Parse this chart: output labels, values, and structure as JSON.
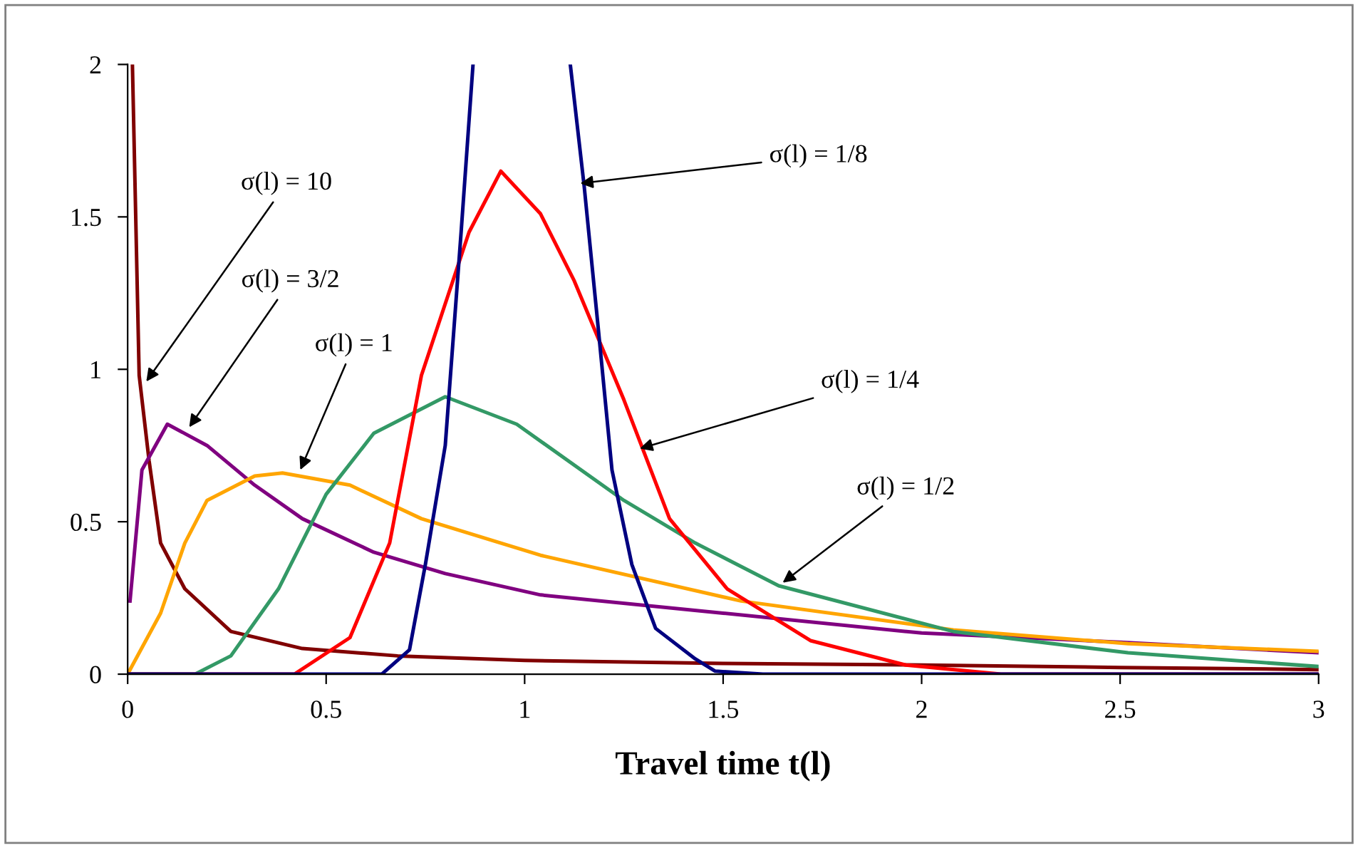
{
  "chart_data": {
    "type": "line",
    "xlabel": "Travel time t(l)",
    "xlim": [
      0,
      3
    ],
    "xticks": [
      0,
      0.5,
      1,
      1.5,
      2,
      2.5,
      3
    ],
    "ylim": [
      0,
      2
    ],
    "yticks": [
      0,
      0.5,
      1,
      1.5,
      2
    ],
    "grid": false,
    "marker": "none",
    "line_style": "solid",
    "series": [
      {
        "color": "#800000",
        "x": [
          0.012,
          0.029,
          0.054,
          0.083,
          0.144,
          0.26,
          0.44,
          0.68,
          1,
          1.5,
          2,
          2.5,
          3
        ],
        "values": [
          2.0,
          0.98,
          0.7,
          0.43,
          0.28,
          0.14,
          0.084,
          0.06,
          0.045,
          0.035,
          0.03,
          0.022,
          0.015
        ]
      },
      {
        "color": "#800080",
        "x": [
          0.006,
          0.036,
          0.1,
          0.2,
          0.32,
          0.44,
          0.62,
          0.8,
          1.04,
          1.5,
          2,
          2.5,
          3
        ],
        "values": [
          0.24,
          0.67,
          0.82,
          0.75,
          0.62,
          0.51,
          0.4,
          0.33,
          0.26,
          0.2,
          0.135,
          0.105,
          0.07
        ]
      },
      {
        "color": "#ffa500",
        "x": [
          0,
          0.083,
          0.144,
          0.2,
          0.32,
          0.39,
          0.56,
          0.74,
          1.04,
          1.545,
          2.08,
          2.52,
          3
        ],
        "values": [
          0,
          0.2,
          0.43,
          0.57,
          0.65,
          0.66,
          0.62,
          0.51,
          0.39,
          0.24,
          0.145,
          0.1,
          0.075
        ]
      },
      {
        "color": "#339966",
        "x": [
          0,
          0.17,
          0.26,
          0.38,
          0.5,
          0.62,
          0.8,
          0.98,
          1.25,
          1.43,
          1.64,
          2.08,
          2.52,
          3
        ],
        "values": [
          0,
          0,
          0.06,
          0.28,
          0.59,
          0.79,
          0.91,
          0.82,
          0.57,
          0.43,
          0.29,
          0.14,
          0.07,
          0.025
        ]
      },
      {
        "color": "#ff0000",
        "x": [
          0,
          0.42,
          0.56,
          0.66,
          0.74,
          0.86,
          0.94,
          1.04,
          1.125,
          1.25,
          1.365,
          1.51,
          1.72,
          1.96,
          2.2,
          3
        ],
        "values": [
          0,
          0,
          0.12,
          0.43,
          0.98,
          1.45,
          1.65,
          1.51,
          1.29,
          0.9,
          0.51,
          0.28,
          0.11,
          0.03,
          0,
          0
        ]
      },
      {
        "color": "#000080",
        "x": [
          0,
          0.64,
          0.71,
          0.75,
          0.8,
          0.84,
          0.87,
          1.0,
          1.115,
          1.15,
          1.185,
          1.22,
          1.27,
          1.33,
          1.43,
          1.48,
          1.6,
          3
        ],
        "values": [
          0,
          0,
          0.08,
          0.36,
          0.75,
          1.45,
          2.0,
          null,
          2.0,
          1.6,
          1.14,
          0.67,
          0.36,
          0.15,
          0.05,
          0.01,
          0,
          0
        ]
      }
    ],
    "annotations": [
      {
        "text": "σ(l) = 10",
        "x": 0.047,
        "y": 0.96
      },
      {
        "text": "σ(l) = 3/2",
        "x": 0.155,
        "y": 0.81
      },
      {
        "text": "σ(l) = 1",
        "x": 0.435,
        "y": 0.67
      },
      {
        "text": "σ(l) = 1/8",
        "x": 1.14,
        "y": 1.61
      },
      {
        "text": "σ(l) = 1/4",
        "x": 1.29,
        "y": 0.74
      },
      {
        "text": "σ(l) = 1/2",
        "x": 1.65,
        "y": 0.3
      }
    ]
  }
}
